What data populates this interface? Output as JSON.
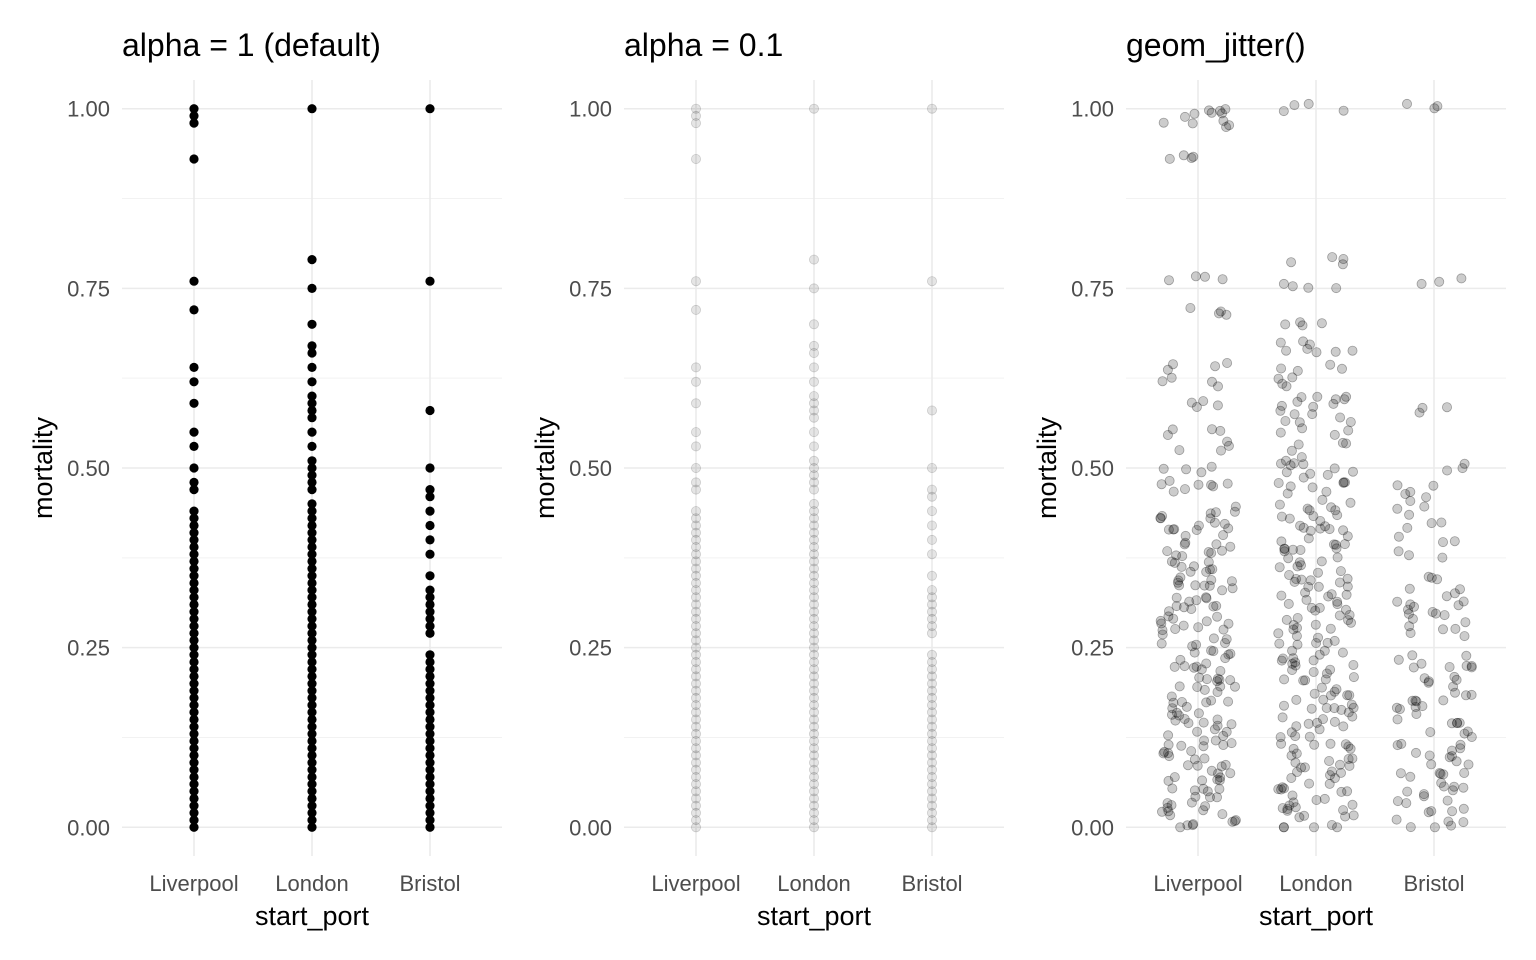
{
  "chart_data": [
    {
      "type": "scatter",
      "title": "alpha = 1 (default)",
      "xlabel": "start_port",
      "ylabel": "mortality",
      "categories": [
        "Liverpool",
        "London",
        "Bristol"
      ],
      "ylim": [
        -0.04,
        1.04
      ],
      "yticks": [
        0.0,
        0.25,
        0.5,
        0.75,
        1.0
      ],
      "ytick_labels": [
        "0.00",
        "0.25",
        "0.50",
        "0.75",
        "1.00"
      ],
      "grid": true,
      "point_alpha": 1,
      "jitter": false,
      "point_color": "#000000",
      "series": [
        {
          "category": "Liverpool",
          "y": [
            0,
            0.01,
            0.02,
            0.03,
            0.04,
            0.05,
            0.06,
            0.07,
            0.08,
            0.09,
            0.1,
            0.11,
            0.12,
            0.13,
            0.14,
            0.15,
            0.16,
            0.17,
            0.18,
            0.19,
            0.2,
            0.21,
            0.22,
            0.23,
            0.24,
            0.25,
            0.26,
            0.27,
            0.28,
            0.29,
            0.3,
            0.31,
            0.32,
            0.33,
            0.34,
            0.35,
            0.36,
            0.37,
            0.38,
            0.39,
            0.4,
            0.41,
            0.42,
            0.43,
            0.44,
            0.47,
            0.48,
            0.5,
            0.53,
            0.55,
            0.59,
            0.62,
            0.64,
            0.72,
            0.76,
            0.93,
            0.98,
            0.99,
            1.0
          ]
        },
        {
          "category": "London",
          "y": [
            0,
            0.01,
            0.02,
            0.03,
            0.04,
            0.05,
            0.06,
            0.07,
            0.08,
            0.09,
            0.1,
            0.11,
            0.12,
            0.13,
            0.14,
            0.15,
            0.16,
            0.17,
            0.18,
            0.19,
            0.2,
            0.21,
            0.22,
            0.23,
            0.24,
            0.25,
            0.26,
            0.27,
            0.28,
            0.29,
            0.3,
            0.31,
            0.32,
            0.33,
            0.34,
            0.35,
            0.36,
            0.37,
            0.38,
            0.39,
            0.4,
            0.41,
            0.42,
            0.43,
            0.44,
            0.45,
            0.47,
            0.48,
            0.49,
            0.5,
            0.51,
            0.53,
            0.55,
            0.57,
            0.58,
            0.59,
            0.6,
            0.62,
            0.64,
            0.66,
            0.67,
            0.7,
            0.75,
            0.79,
            1.0
          ]
        },
        {
          "category": "Bristol",
          "y": [
            0,
            0.01,
            0.02,
            0.03,
            0.04,
            0.05,
            0.06,
            0.07,
            0.08,
            0.09,
            0.1,
            0.11,
            0.12,
            0.13,
            0.14,
            0.15,
            0.16,
            0.17,
            0.18,
            0.19,
            0.2,
            0.21,
            0.22,
            0.23,
            0.24,
            0.27,
            0.28,
            0.29,
            0.3,
            0.31,
            0.32,
            0.33,
            0.35,
            0.38,
            0.4,
            0.42,
            0.44,
            0.46,
            0.47,
            0.5,
            0.58,
            0.76,
            1.0
          ]
        }
      ]
    },
    {
      "type": "scatter",
      "title": "alpha = 0.1",
      "xlabel": "start_port",
      "ylabel": "mortality",
      "categories": [
        "Liverpool",
        "London",
        "Bristol"
      ],
      "ylim": [
        -0.04,
        1.04
      ],
      "yticks": [
        0.0,
        0.25,
        0.5,
        0.75,
        1.0
      ],
      "ytick_labels": [
        "0.00",
        "0.25",
        "0.50",
        "0.75",
        "1.00"
      ],
      "grid": true,
      "point_alpha": 0.1,
      "jitter": false,
      "point_color": "#000000",
      "series": [
        {
          "category": "Liverpool",
          "y": [
            0,
            0.01,
            0.02,
            0.03,
            0.04,
            0.05,
            0.06,
            0.07,
            0.08,
            0.09,
            0.1,
            0.11,
            0.12,
            0.13,
            0.14,
            0.15,
            0.16,
            0.17,
            0.18,
            0.19,
            0.2,
            0.21,
            0.22,
            0.23,
            0.24,
            0.25,
            0.26,
            0.27,
            0.28,
            0.29,
            0.3,
            0.31,
            0.32,
            0.33,
            0.34,
            0.35,
            0.36,
            0.37,
            0.38,
            0.39,
            0.4,
            0.41,
            0.42,
            0.43,
            0.44,
            0.47,
            0.48,
            0.5,
            0.53,
            0.55,
            0.59,
            0.62,
            0.64,
            0.72,
            0.76,
            0.93,
            0.98,
            0.99,
            1.0
          ]
        },
        {
          "category": "London",
          "y": [
            0,
            0.01,
            0.02,
            0.03,
            0.04,
            0.05,
            0.06,
            0.07,
            0.08,
            0.09,
            0.1,
            0.11,
            0.12,
            0.13,
            0.14,
            0.15,
            0.16,
            0.17,
            0.18,
            0.19,
            0.2,
            0.21,
            0.22,
            0.23,
            0.24,
            0.25,
            0.26,
            0.27,
            0.28,
            0.29,
            0.3,
            0.31,
            0.32,
            0.33,
            0.34,
            0.35,
            0.36,
            0.37,
            0.38,
            0.39,
            0.4,
            0.41,
            0.42,
            0.43,
            0.44,
            0.45,
            0.47,
            0.48,
            0.49,
            0.5,
            0.51,
            0.53,
            0.55,
            0.57,
            0.58,
            0.59,
            0.6,
            0.62,
            0.64,
            0.66,
            0.67,
            0.7,
            0.75,
            0.79,
            1.0
          ]
        },
        {
          "category": "Bristol",
          "y": [
            0,
            0.01,
            0.02,
            0.03,
            0.04,
            0.05,
            0.06,
            0.07,
            0.08,
            0.09,
            0.1,
            0.11,
            0.12,
            0.13,
            0.14,
            0.15,
            0.16,
            0.17,
            0.18,
            0.19,
            0.2,
            0.21,
            0.22,
            0.23,
            0.24,
            0.27,
            0.28,
            0.29,
            0.3,
            0.31,
            0.32,
            0.33,
            0.35,
            0.38,
            0.4,
            0.42,
            0.44,
            0.46,
            0.47,
            0.5,
            0.58,
            0.76,
            1.0
          ]
        }
      ]
    },
    {
      "type": "scatter",
      "title": "geom_jitter()",
      "xlabel": "start_port",
      "ylabel": "mortality",
      "categories": [
        "Liverpool",
        "London",
        "Bristol"
      ],
      "ylim": [
        -0.04,
        1.04
      ],
      "yticks": [
        0.0,
        0.25,
        0.5,
        0.75,
        1.0
      ],
      "ytick_labels": [
        "0.00",
        "0.25",
        "0.50",
        "0.75",
        "1.00"
      ],
      "grid": true,
      "point_alpha": 0.2,
      "jitter": true,
      "point_color": "#000000",
      "series": [
        {
          "category": "Liverpool",
          "y": [
            0,
            0.01,
            0.02,
            0.03,
            0.04,
            0.05,
            0.06,
            0.07,
            0.08,
            0.09,
            0.1,
            0.11,
            0.12,
            0.13,
            0.14,
            0.15,
            0.16,
            0.17,
            0.18,
            0.19,
            0.2,
            0.21,
            0.22,
            0.23,
            0.24,
            0.25,
            0.26,
            0.27,
            0.28,
            0.29,
            0.3,
            0.31,
            0.32,
            0.33,
            0.34,
            0.35,
            0.36,
            0.37,
            0.38,
            0.39,
            0.4,
            0.41,
            0.42,
            0.43,
            0.44,
            0.47,
            0.48,
            0.5,
            0.53,
            0.55,
            0.59,
            0.62,
            0.64,
            0.72,
            0.76,
            0.93,
            0.98,
            0.99,
            1.0
          ]
        },
        {
          "category": "London",
          "y": [
            0,
            0.01,
            0.02,
            0.03,
            0.04,
            0.05,
            0.06,
            0.07,
            0.08,
            0.09,
            0.1,
            0.11,
            0.12,
            0.13,
            0.14,
            0.15,
            0.16,
            0.17,
            0.18,
            0.19,
            0.2,
            0.21,
            0.22,
            0.23,
            0.24,
            0.25,
            0.26,
            0.27,
            0.28,
            0.29,
            0.3,
            0.31,
            0.32,
            0.33,
            0.34,
            0.35,
            0.36,
            0.37,
            0.38,
            0.39,
            0.4,
            0.41,
            0.42,
            0.43,
            0.44,
            0.45,
            0.47,
            0.48,
            0.49,
            0.5,
            0.51,
            0.53,
            0.55,
            0.57,
            0.58,
            0.59,
            0.6,
            0.62,
            0.64,
            0.66,
            0.67,
            0.7,
            0.75,
            0.79,
            1.0
          ]
        },
        {
          "category": "Bristol",
          "y": [
            0,
            0.01,
            0.02,
            0.03,
            0.04,
            0.05,
            0.06,
            0.07,
            0.08,
            0.09,
            0.1,
            0.11,
            0.12,
            0.13,
            0.14,
            0.15,
            0.16,
            0.17,
            0.18,
            0.19,
            0.2,
            0.21,
            0.22,
            0.23,
            0.24,
            0.27,
            0.28,
            0.29,
            0.3,
            0.31,
            0.32,
            0.33,
            0.35,
            0.38,
            0.4,
            0.42,
            0.44,
            0.46,
            0.47,
            0.5,
            0.58,
            0.76,
            1.0
          ]
        }
      ]
    }
  ]
}
